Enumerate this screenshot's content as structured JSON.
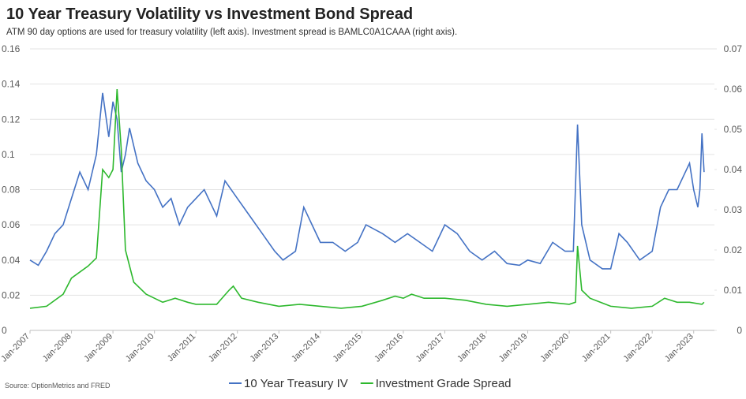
{
  "chart_data": {
    "type": "line",
    "title": "10 Year Treasury Volatility vs Investment Bond Spread",
    "subtitle": "ATM 90 day options are used for treasury volatility (left axis). Investment spread is BAMLC0A1CAAA (right axis).",
    "source": "Source: OptionMetrics and FRED",
    "xlim": [
      2007,
      2023.5
    ],
    "xticks": [
      {
        "value": 2007,
        "label": "Jan-2007"
      },
      {
        "value": 2008,
        "label": "Jan-2008"
      },
      {
        "value": 2009,
        "label": "Jan-2009"
      },
      {
        "value": 2010,
        "label": "Jan-2010"
      },
      {
        "value": 2011,
        "label": "Jan-2011"
      },
      {
        "value": 2012,
        "label": "Jan-2012"
      },
      {
        "value": 2013,
        "label": "Jan-2013"
      },
      {
        "value": 2014,
        "label": "Jan-2014"
      },
      {
        "value": 2015,
        "label": "Jan-2015"
      },
      {
        "value": 2016,
        "label": "Jan-2016"
      },
      {
        "value": 2017,
        "label": "Jan-2017"
      },
      {
        "value": 2018,
        "label": "Jan-2018"
      },
      {
        "value": 2019,
        "label": "Jan-2019"
      },
      {
        "value": 2020,
        "label": "Jan-2020"
      },
      {
        "value": 2021,
        "label": "Jan-2021"
      },
      {
        "value": 2022,
        "label": "Jan-2022"
      },
      {
        "value": 2023,
        "label": "Jan-2023"
      }
    ],
    "ylim": [
      0,
      0.16
    ],
    "yticks": [
      0,
      0.02,
      0.04,
      0.06,
      0.08,
      0.1,
      0.12,
      0.14,
      0.16
    ],
    "y2lim": [
      0,
      0.07
    ],
    "y2ticks": [
      0,
      0.01,
      0.02,
      0.03,
      0.04,
      0.05,
      0.06,
      0.07
    ],
    "grid": true,
    "legend": "bottom",
    "series": [
      {
        "name": "10 Year Treasury IV",
        "color": "#4472c4",
        "x": [
          2007.0,
          2007.2,
          2007.4,
          2007.6,
          2007.8,
          2008.0,
          2008.2,
          2008.4,
          2008.6,
          2008.75,
          2008.9,
          2009.0,
          2009.1,
          2009.2,
          2009.3,
          2009.4,
          2009.6,
          2009.8,
          2010.0,
          2010.2,
          2010.4,
          2010.6,
          2010.8,
          2011.0,
          2011.2,
          2011.5,
          2011.7,
          2012.0,
          2012.3,
          2012.6,
          2012.9,
          2013.1,
          2013.4,
          2013.6,
          2013.8,
          2014.0,
          2014.3,
          2014.6,
          2014.9,
          2015.1,
          2015.5,
          2015.8,
          2016.1,
          2016.4,
          2016.7,
          2017.0,
          2017.3,
          2017.6,
          2017.9,
          2018.2,
          2018.5,
          2018.8,
          2019.0,
          2019.3,
          2019.6,
          2019.9,
          2020.1,
          2020.2,
          2020.3,
          2020.5,
          2020.8,
          2021.0,
          2021.2,
          2021.4,
          2021.7,
          2022.0,
          2022.2,
          2022.4,
          2022.6,
          2022.8,
          2022.9,
          2023.0,
          2023.1,
          2023.15,
          2023.2,
          2023.25
        ],
        "values": [
          0.04,
          0.037,
          0.045,
          0.055,
          0.06,
          0.075,
          0.09,
          0.08,
          0.1,
          0.135,
          0.11,
          0.13,
          0.12,
          0.09,
          0.1,
          0.115,
          0.095,
          0.085,
          0.08,
          0.07,
          0.075,
          0.06,
          0.07,
          0.075,
          0.08,
          0.065,
          0.085,
          0.075,
          0.065,
          0.055,
          0.045,
          0.04,
          0.045,
          0.07,
          0.06,
          0.05,
          0.05,
          0.045,
          0.05,
          0.06,
          0.055,
          0.05,
          0.055,
          0.05,
          0.045,
          0.06,
          0.055,
          0.045,
          0.04,
          0.045,
          0.038,
          0.037,
          0.04,
          0.038,
          0.05,
          0.045,
          0.045,
          0.117,
          0.06,
          0.04,
          0.035,
          0.035,
          0.055,
          0.05,
          0.04,
          0.045,
          0.07,
          0.08,
          0.08,
          0.09,
          0.095,
          0.08,
          0.07,
          0.08,
          0.112,
          0.09
        ]
      },
      {
        "name": "Investment Grade Spread",
        "color": "#2db82d",
        "axis": "y2",
        "x": [
          2007.0,
          2007.4,
          2007.8,
          2008.0,
          2008.4,
          2008.6,
          2008.75,
          2008.9,
          2009.0,
          2009.1,
          2009.2,
          2009.3,
          2009.5,
          2009.8,
          2010.0,
          2010.2,
          2010.5,
          2010.8,
          2011.0,
          2011.5,
          2011.8,
          2011.9,
          2012.1,
          2012.5,
          2013.0,
          2013.5,
          2014.0,
          2014.5,
          2015.0,
          2015.5,
          2015.8,
          2016.0,
          2016.2,
          2016.5,
          2017.0,
          2017.5,
          2018.0,
          2018.5,
          2019.0,
          2019.5,
          2020.0,
          2020.15,
          2020.2,
          2020.3,
          2020.5,
          2021.0,
          2021.5,
          2022.0,
          2022.3,
          2022.6,
          2022.9,
          2023.2,
          2023.25
        ],
        "values": [
          0.0055,
          0.006,
          0.009,
          0.013,
          0.016,
          0.018,
          0.04,
          0.038,
          0.04,
          0.06,
          0.045,
          0.02,
          0.012,
          0.009,
          0.008,
          0.007,
          0.008,
          0.007,
          0.0065,
          0.0065,
          0.01,
          0.011,
          0.008,
          0.007,
          0.006,
          0.0065,
          0.006,
          0.0055,
          0.006,
          0.0075,
          0.0085,
          0.008,
          0.009,
          0.008,
          0.008,
          0.0075,
          0.0065,
          0.006,
          0.0065,
          0.007,
          0.0065,
          0.007,
          0.021,
          0.01,
          0.008,
          0.006,
          0.0055,
          0.006,
          0.008,
          0.007,
          0.007,
          0.0065,
          0.007
        ]
      }
    ]
  }
}
